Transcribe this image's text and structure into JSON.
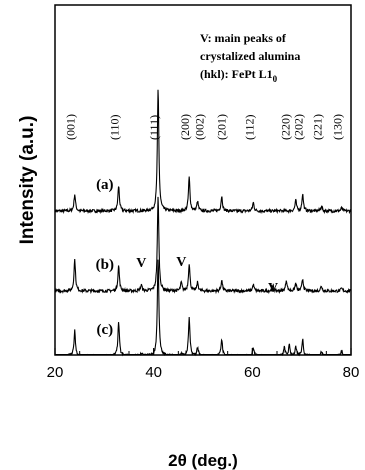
{
  "chart_data": {
    "type": "line",
    "xlabel": "2θ (deg.)",
    "ylabel": "Intensity (a.u.)",
    "xlim": [
      20,
      80
    ],
    "x_ticks": [
      "20",
      "40",
      "60",
      "80"
    ],
    "legend": {
      "line1": "V:  main peaks of",
      "line2": "crystalized alumina",
      "line3": "(hkl):  FePt L1",
      "line3_sub": "0"
    },
    "peak_labels": [
      {
        "label": "(001)",
        "x": 24.0
      },
      {
        "label": "(110)",
        "x": 32.9
      },
      {
        "label": "(111)",
        "x": 40.9
      },
      {
        "label": "(200)",
        "x": 47.2
      },
      {
        "label": "(002)",
        "x": 48.9
      },
      {
        "label": "(201)",
        "x": 53.8
      },
      {
        "label": "(112)",
        "x": 60.2
      },
      {
        "label": "(220)",
        "x": 67.5
      },
      {
        "label": "(202)",
        "x": 70.2
      },
      {
        "label": "(221)",
        "x": 74.0
      },
      {
        "label": "(130)",
        "x": 78.1
      }
    ],
    "alumina_marks": {
      "symbol": "V",
      "x": [
        37.5,
        45.6,
        64.2
      ]
    },
    "series": [
      {
        "name": "(a)",
        "peaks": [
          {
            "x": 24.0,
            "h": 0.4
          },
          {
            "x": 32.9,
            "h": 0.6
          },
          {
            "x": 40.9,
            "h": 2.9
          },
          {
            "x": 47.2,
            "h": 0.8
          },
          {
            "x": 48.9,
            "h": 0.22
          },
          {
            "x": 53.8,
            "h": 0.35
          },
          {
            "x": 60.2,
            "h": 0.2
          },
          {
            "x": 68.8,
            "h": 0.25
          },
          {
            "x": 70.2,
            "h": 0.4
          },
          {
            "x": 74.0,
            "h": 0.12
          },
          {
            "x": 78.1,
            "h": 0.07
          }
        ]
      },
      {
        "name": "(b)",
        "peaks": [
          {
            "x": 24.0,
            "h": 0.75
          },
          {
            "x": 32.9,
            "h": 0.6
          },
          {
            "x": 37.5,
            "h": 0.14
          },
          {
            "x": 40.9,
            "h": 2.25
          },
          {
            "x": 45.6,
            "h": 0.2
          },
          {
            "x": 47.2,
            "h": 0.65
          },
          {
            "x": 48.9,
            "h": 0.2
          },
          {
            "x": 53.8,
            "h": 0.25
          },
          {
            "x": 60.2,
            "h": 0.15
          },
          {
            "x": 64.2,
            "h": 0.12
          },
          {
            "x": 66.9,
            "h": 0.26
          },
          {
            "x": 68.8,
            "h": 0.18
          },
          {
            "x": 70.2,
            "h": 0.28
          },
          {
            "x": 74.0,
            "h": 0.12
          },
          {
            "x": 78.1,
            "h": 0.06
          }
        ]
      },
      {
        "name": "(c)",
        "peaks": [
          {
            "x": 24.0,
            "h": 0.6
          },
          {
            "x": 32.9,
            "h": 0.8
          },
          {
            "x": 37.5,
            "h": 0.05
          },
          {
            "x": 40.9,
            "h": 2.35
          },
          {
            "x": 45.6,
            "h": 0.05
          },
          {
            "x": 47.2,
            "h": 0.9
          },
          {
            "x": 48.9,
            "h": 0.2
          },
          {
            "x": 53.8,
            "h": 0.4
          },
          {
            "x": 60.2,
            "h": 0.2
          },
          {
            "x": 66.5,
            "h": 0.2
          },
          {
            "x": 67.5,
            "h": 0.25
          },
          {
            "x": 68.8,
            "h": 0.2
          },
          {
            "x": 70.2,
            "h": 0.4
          },
          {
            "x": 74.0,
            "h": 0.1
          },
          {
            "x": 78.1,
            "h": 0.12
          }
        ]
      }
    ]
  }
}
